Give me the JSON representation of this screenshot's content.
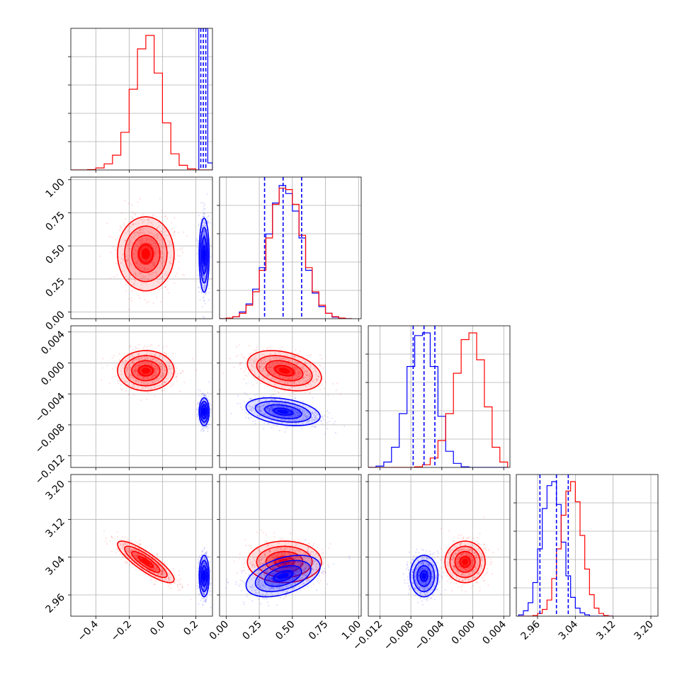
{
  "chart_data": {
    "type": "corner",
    "title": "",
    "grid": true,
    "legend": "none",
    "colors": {
      "red": "#ff0000",
      "blue": "#0000ff"
    },
    "params": [
      {
        "range": [
          -0.55,
          0.3
        ],
        "ticks": [
          -0.4,
          -0.2,
          0.0,
          0.2
        ],
        "tick_labels": [
          "−0.4",
          "−0.2",
          "0.0",
          "0.2"
        ]
      },
      {
        "range": [
          -0.05,
          1.02
        ],
        "ticks": [
          0.0,
          0.25,
          0.5,
          0.75,
          1.0
        ],
        "tick_labels": [
          "0.00",
          "0.25",
          "0.50",
          "0.75",
          "1.00"
        ]
      },
      {
        "range": [
          -0.0135,
          0.0048
        ],
        "ticks": [
          -0.012,
          -0.008,
          -0.004,
          0.0,
          0.004
        ],
        "tick_labels": [
          "−0.012",
          "−0.008",
          "−0.004",
          "0.000",
          "0.004"
        ]
      },
      {
        "range": [
          2.915,
          3.215
        ],
        "ticks": [
          2.96,
          3.04,
          3.12,
          3.2
        ],
        "tick_labels": [
          "2.96",
          "3.04",
          "3.12",
          "3.20"
        ]
      }
    ],
    "series": [
      {
        "name": "",
        "color": "#ff0000",
        "mean": [
          -0.1,
          0.44,
          -0.001,
          3.03
        ],
        "sd": [
          0.085,
          0.14,
          0.0013,
          0.022
        ]
      },
      {
        "name": "",
        "color": "#0000ff",
        "mean": [
          0.25,
          0.43,
          -0.0063,
          3.0
        ],
        "sd": [
          0.015,
          0.14,
          0.0009,
          0.022
        ]
      }
    ],
    "correlations": [
      {
        "series": 0,
        "pair": [
          0,
          3
        ],
        "rho": -0.85
      },
      {
        "series": 0,
        "pair": [
          1,
          2
        ],
        "rho": -0.35
      },
      {
        "series": 1,
        "pair": [
          1,
          2
        ],
        "rho": -0.35
      },
      {
        "series": 1,
        "pair": [
          1,
          3
        ],
        "rho": 0.45
      }
    ],
    "histograms": {
      "x0": {
        "edges": [
          -0.55,
          -0.5,
          -0.45,
          -0.4,
          -0.35,
          -0.3,
          -0.25,
          -0.2,
          -0.15,
          -0.1,
          -0.05,
          0.0,
          0.05,
          0.1,
          0.15,
          0.2,
          0.25,
          0.3
        ],
        "red": [
          0.0,
          0.0,
          0.003,
          0.015,
          0.045,
          0.11,
          0.28,
          0.6,
          0.9,
          1.0,
          0.72,
          0.35,
          0.12,
          0.035,
          0.008,
          0.0,
          0.0
        ],
        "blue_bar_height": 0.05
      },
      "x1": {
        "edges": [
          -0.05,
          0.0,
          0.05,
          0.1,
          0.15,
          0.2,
          0.25,
          0.3,
          0.35,
          0.4,
          0.45,
          0.5,
          0.55,
          0.6,
          0.65,
          0.7,
          0.75,
          0.8,
          0.85,
          0.9,
          0.95
        ],
        "red": [
          0.0,
          0.005,
          0.015,
          0.04,
          0.1,
          0.2,
          0.36,
          0.6,
          0.85,
          0.97,
          0.96,
          0.85,
          0.62,
          0.38,
          0.2,
          0.1,
          0.04,
          0.015,
          0.005,
          0.0
        ],
        "blue": [
          0.0,
          0.005,
          0.015,
          0.05,
          0.11,
          0.22,
          0.38,
          0.63,
          0.86,
          0.99,
          0.93,
          0.8,
          0.6,
          0.36,
          0.19,
          0.09,
          0.04,
          0.012,
          0.004,
          0.0
        ]
      },
      "x2": {
        "edges": [
          -0.0135,
          -0.0125,
          -0.0115,
          -0.0105,
          -0.0095,
          -0.0085,
          -0.0075,
          -0.0065,
          -0.0055,
          -0.0045,
          -0.0035,
          -0.0025,
          -0.0015,
          -0.0005,
          0.0005,
          0.0015,
          0.0025,
          0.0035,
          0.0045
        ],
        "red": [
          0.0,
          0.0,
          0.0,
          0.0,
          0.0,
          0.0,
          0.005,
          0.02,
          0.07,
          0.2,
          0.4,
          0.7,
          0.95,
          1.0,
          0.8,
          0.45,
          0.15,
          0.04
        ],
        "blue": [
          0.0,
          0.01,
          0.04,
          0.15,
          0.4,
          0.75,
          0.98,
          1.0,
          0.75,
          0.38,
          0.12,
          0.03,
          0.005,
          0.0,
          0.0,
          0.0,
          0.0,
          0.0
        ]
      },
      "x3": {
        "edges": [
          2.92,
          2.93,
          2.94,
          2.95,
          2.96,
          2.97,
          2.98,
          2.99,
          3.0,
          3.01,
          3.02,
          3.03,
          3.04,
          3.05,
          3.06,
          3.07,
          3.08,
          3.09,
          3.1,
          3.11,
          3.12
        ],
        "red": [
          0.0,
          0.0,
          0.0,
          0.005,
          0.02,
          0.05,
          0.12,
          0.28,
          0.5,
          0.75,
          0.93,
          1.0,
          0.85,
          0.6,
          0.35,
          0.16,
          0.06,
          0.02,
          0.005,
          0.0
        ],
        "blue": [
          0.01,
          0.04,
          0.1,
          0.25,
          0.5,
          0.8,
          0.97,
          1.0,
          0.83,
          0.55,
          0.3,
          0.14,
          0.06,
          0.025,
          0.01,
          0.0,
          0.0,
          0.0,
          0.0,
          0.0
        ]
      }
    },
    "quantile_lines": {
      "x0": [
        0.23,
        0.245,
        0.26
      ],
      "x1": [
        0.29,
        0.43,
        0.57
      ],
      "x2": [
        -0.0077,
        -0.0063,
        -0.0049
      ],
      "x3": [
        2.965,
        3.0,
        3.025
      ]
    }
  }
}
